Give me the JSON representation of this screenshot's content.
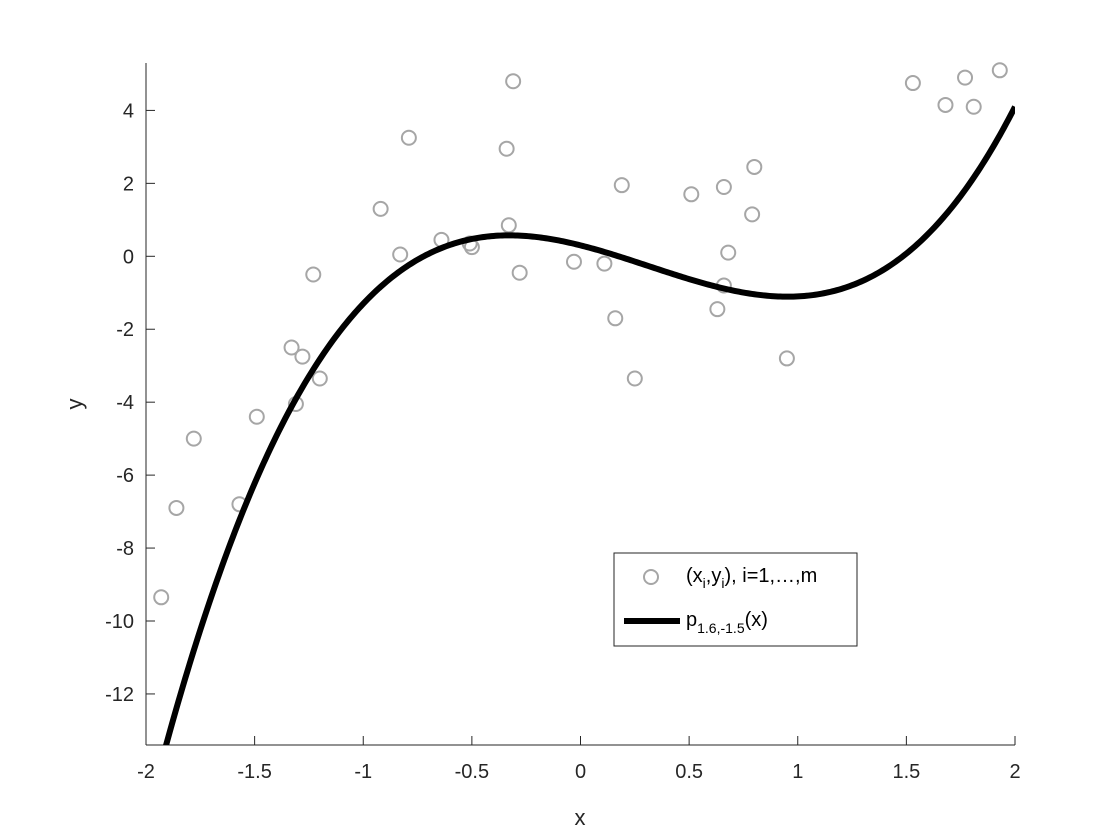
{
  "chart_data": {
    "type": "scatter",
    "title": "",
    "xlabel": "x",
    "ylabel": "y",
    "xlim": [
      -2,
      2
    ],
    "ylim": [
      -13.4,
      5.3
    ],
    "xticks": [
      -2,
      -1.5,
      -1,
      -0.5,
      0,
      0.5,
      1,
      1.5,
      2
    ],
    "xtick_labels": [
      "-2",
      "-1.5",
      "-1",
      "-0.5",
      "0",
      "0.5",
      "1",
      "1.5",
      "2"
    ],
    "yticks": [
      -12,
      -10,
      -8,
      -6,
      -4,
      -2,
      0,
      2,
      4
    ],
    "ytick_labels": [
      "-12",
      "-10",
      "-8",
      "-6",
      "-4",
      "-2",
      "0",
      "2",
      "4"
    ],
    "grid": false,
    "legend_position": "lower-right",
    "series": [
      {
        "name": "(x_i,y_i), i=1,...,m",
        "kind": "scatter",
        "marker": "open-circle",
        "color": "#a6a6a6",
        "x": [
          -1.93,
          -1.86,
          -1.78,
          -1.57,
          -1.49,
          -1.33,
          -1.31,
          -1.28,
          -1.23,
          -1.2,
          -0.92,
          -0.83,
          -0.79,
          -0.64,
          -0.51,
          -0.5,
          -0.34,
          -0.33,
          -0.31,
          -0.28,
          -0.03,
          0.11,
          0.16,
          0.19,
          0.25,
          0.63,
          0.51,
          0.66,
          0.66,
          0.68,
          0.79,
          0.8,
          0.95,
          1.53,
          1.68,
          1.77,
          1.81,
          1.93
        ],
        "y": [
          -9.35,
          -6.9,
          -5.0,
          -6.8,
          -4.4,
          -2.5,
          -4.05,
          -2.75,
          -0.5,
          -3.35,
          1.3,
          0.05,
          3.25,
          0.45,
          0.35,
          0.25,
          2.95,
          0.85,
          4.8,
          -0.45,
          -0.15,
          -0.2,
          -1.7,
          1.95,
          -3.35,
          -1.45,
          1.7,
          1.9,
          -0.8,
          0.1,
          1.15,
          2.45,
          -2.8,
          4.75,
          4.15,
          4.9,
          4.1,
          5.1
        ]
      },
      {
        "name": "p_{1.6,-1.5}(x)",
        "kind": "line",
        "color": "#000000",
        "function": "polynomial",
        "coefficients_low_to_high": [
          0.3,
          -1.5,
          -1.5,
          1.6
        ]
      }
    ]
  },
  "legend": {
    "scatter_label_parts": [
      "(x",
      "i",
      ",y",
      "i",
      "), i=1,…,m"
    ],
    "line_label_parts": [
      "p",
      "1.6,-1.5",
      "(x)"
    ]
  }
}
